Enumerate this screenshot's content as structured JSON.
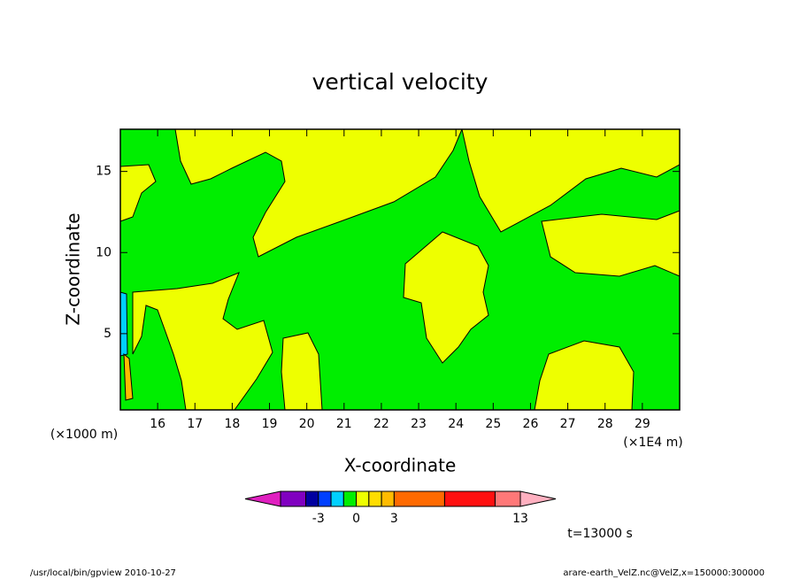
{
  "chart_data": {
    "type": "contour",
    "title": "vertical velocity",
    "xlabel": "X-coordinate",
    "ylabel": "Z-coordinate",
    "xunit": "(×1E4 m)",
    "yunit": "(×1000 m)",
    "xlim": [
      15,
      30
    ],
    "xticks": [
      16,
      17,
      18,
      19,
      20,
      21,
      22,
      23,
      24,
      25,
      26,
      27,
      28,
      29
    ],
    "ylim": [
      0.3,
      17.6
    ],
    "yticks": [
      5,
      10,
      15
    ],
    "levels": [
      -6,
      -4,
      -3,
      -2,
      -1,
      0,
      1,
      2,
      3,
      7,
      11,
      13
    ],
    "colors": [
      "#e020c0",
      "#8000c0",
      "#0000a0",
      "#0040ff",
      "#00d0ff",
      "#00ee00",
      "#eeff00",
      "#ffdd00",
      "#ffbb00",
      "#ff6a00",
      "#ff1010",
      "#ff7878",
      "#ffb0c0"
    ],
    "colorbar_ticks": [
      -3,
      0,
      3,
      13
    ],
    "time_label": "t=13000 s",
    "footer_left": "/usr/local/bin/gpview   2010-10-27",
    "footer_right": "arare-earth_VelZ.nc@VelZ,x=150000:300000"
  }
}
